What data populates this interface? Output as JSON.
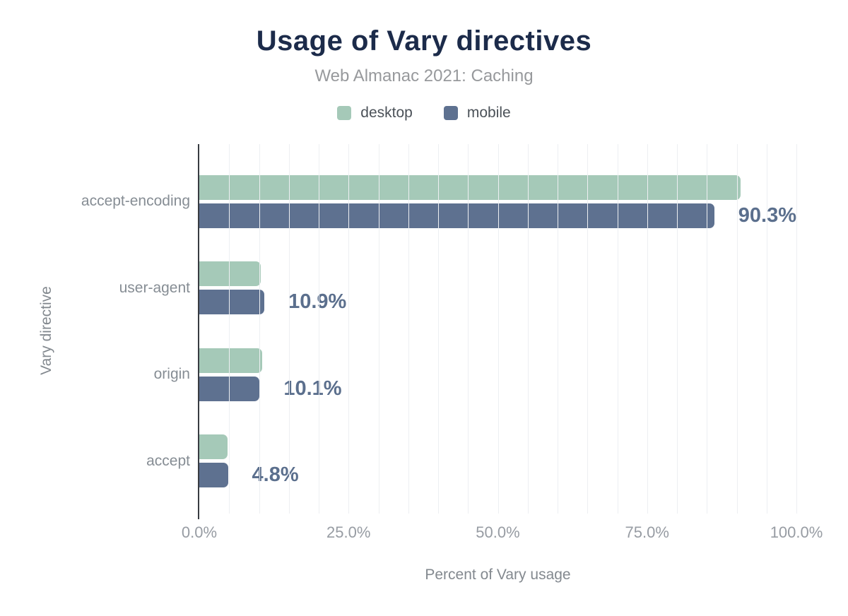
{
  "figure": {
    "title": "Usage of Vary directives",
    "subtitle": "Web Almanac 2021: Caching",
    "xlabel": "Percent of Vary usage",
    "ylabel": "Vary directive"
  },
  "legend": {
    "items": [
      {
        "label": "desktop",
        "color": "#a5c9b8"
      },
      {
        "label": "mobile",
        "color": "#5e7190"
      }
    ]
  },
  "chart_data": {
    "type": "bar",
    "orientation": "horizontal",
    "title": "Usage of Vary directives",
    "subtitle": "Web Almanac 2021: Caching",
    "xlabel": "Percent of Vary usage",
    "ylabel": "Vary directive",
    "categories": [
      "accept-encoding",
      "user-agent",
      "origin",
      "accept"
    ],
    "series": [
      {
        "name": "desktop",
        "color": "#a5c9b8",
        "values": [
          90.6,
          10.3,
          10.5,
          4.7
        ]
      },
      {
        "name": "mobile",
        "color": "#5e7190",
        "values": [
          90.3,
          10.9,
          10.1,
          4.8
        ]
      }
    ],
    "value_labels": [
      "90.3%",
      "10.9%",
      "10.1%",
      "4.8%"
    ],
    "value_labels_for_series": "mobile",
    "xlim": [
      0,
      100
    ],
    "xticks": [
      {
        "value": 0,
        "label": "0.0%"
      },
      {
        "value": 25,
        "label": "25.0%"
      },
      {
        "value": 50,
        "label": "50.0%"
      },
      {
        "value": 75,
        "label": "75.0%"
      },
      {
        "value": 100,
        "label": "100.0%"
      }
    ],
    "minor_grid_step": 5,
    "grid": "vertical-minor",
    "legend_position": "top"
  },
  "colors": {
    "background": "#ffffff",
    "title": "#1c2b4a",
    "subtitle": "#97999c",
    "value_label": "#5b6f8d",
    "category_label": "#868d94",
    "tick_label": "#979ca3",
    "axis_title": "#83898f",
    "legend_label": "#4b5158",
    "axis_line": "#383c42",
    "gridline": "#edeff2"
  }
}
